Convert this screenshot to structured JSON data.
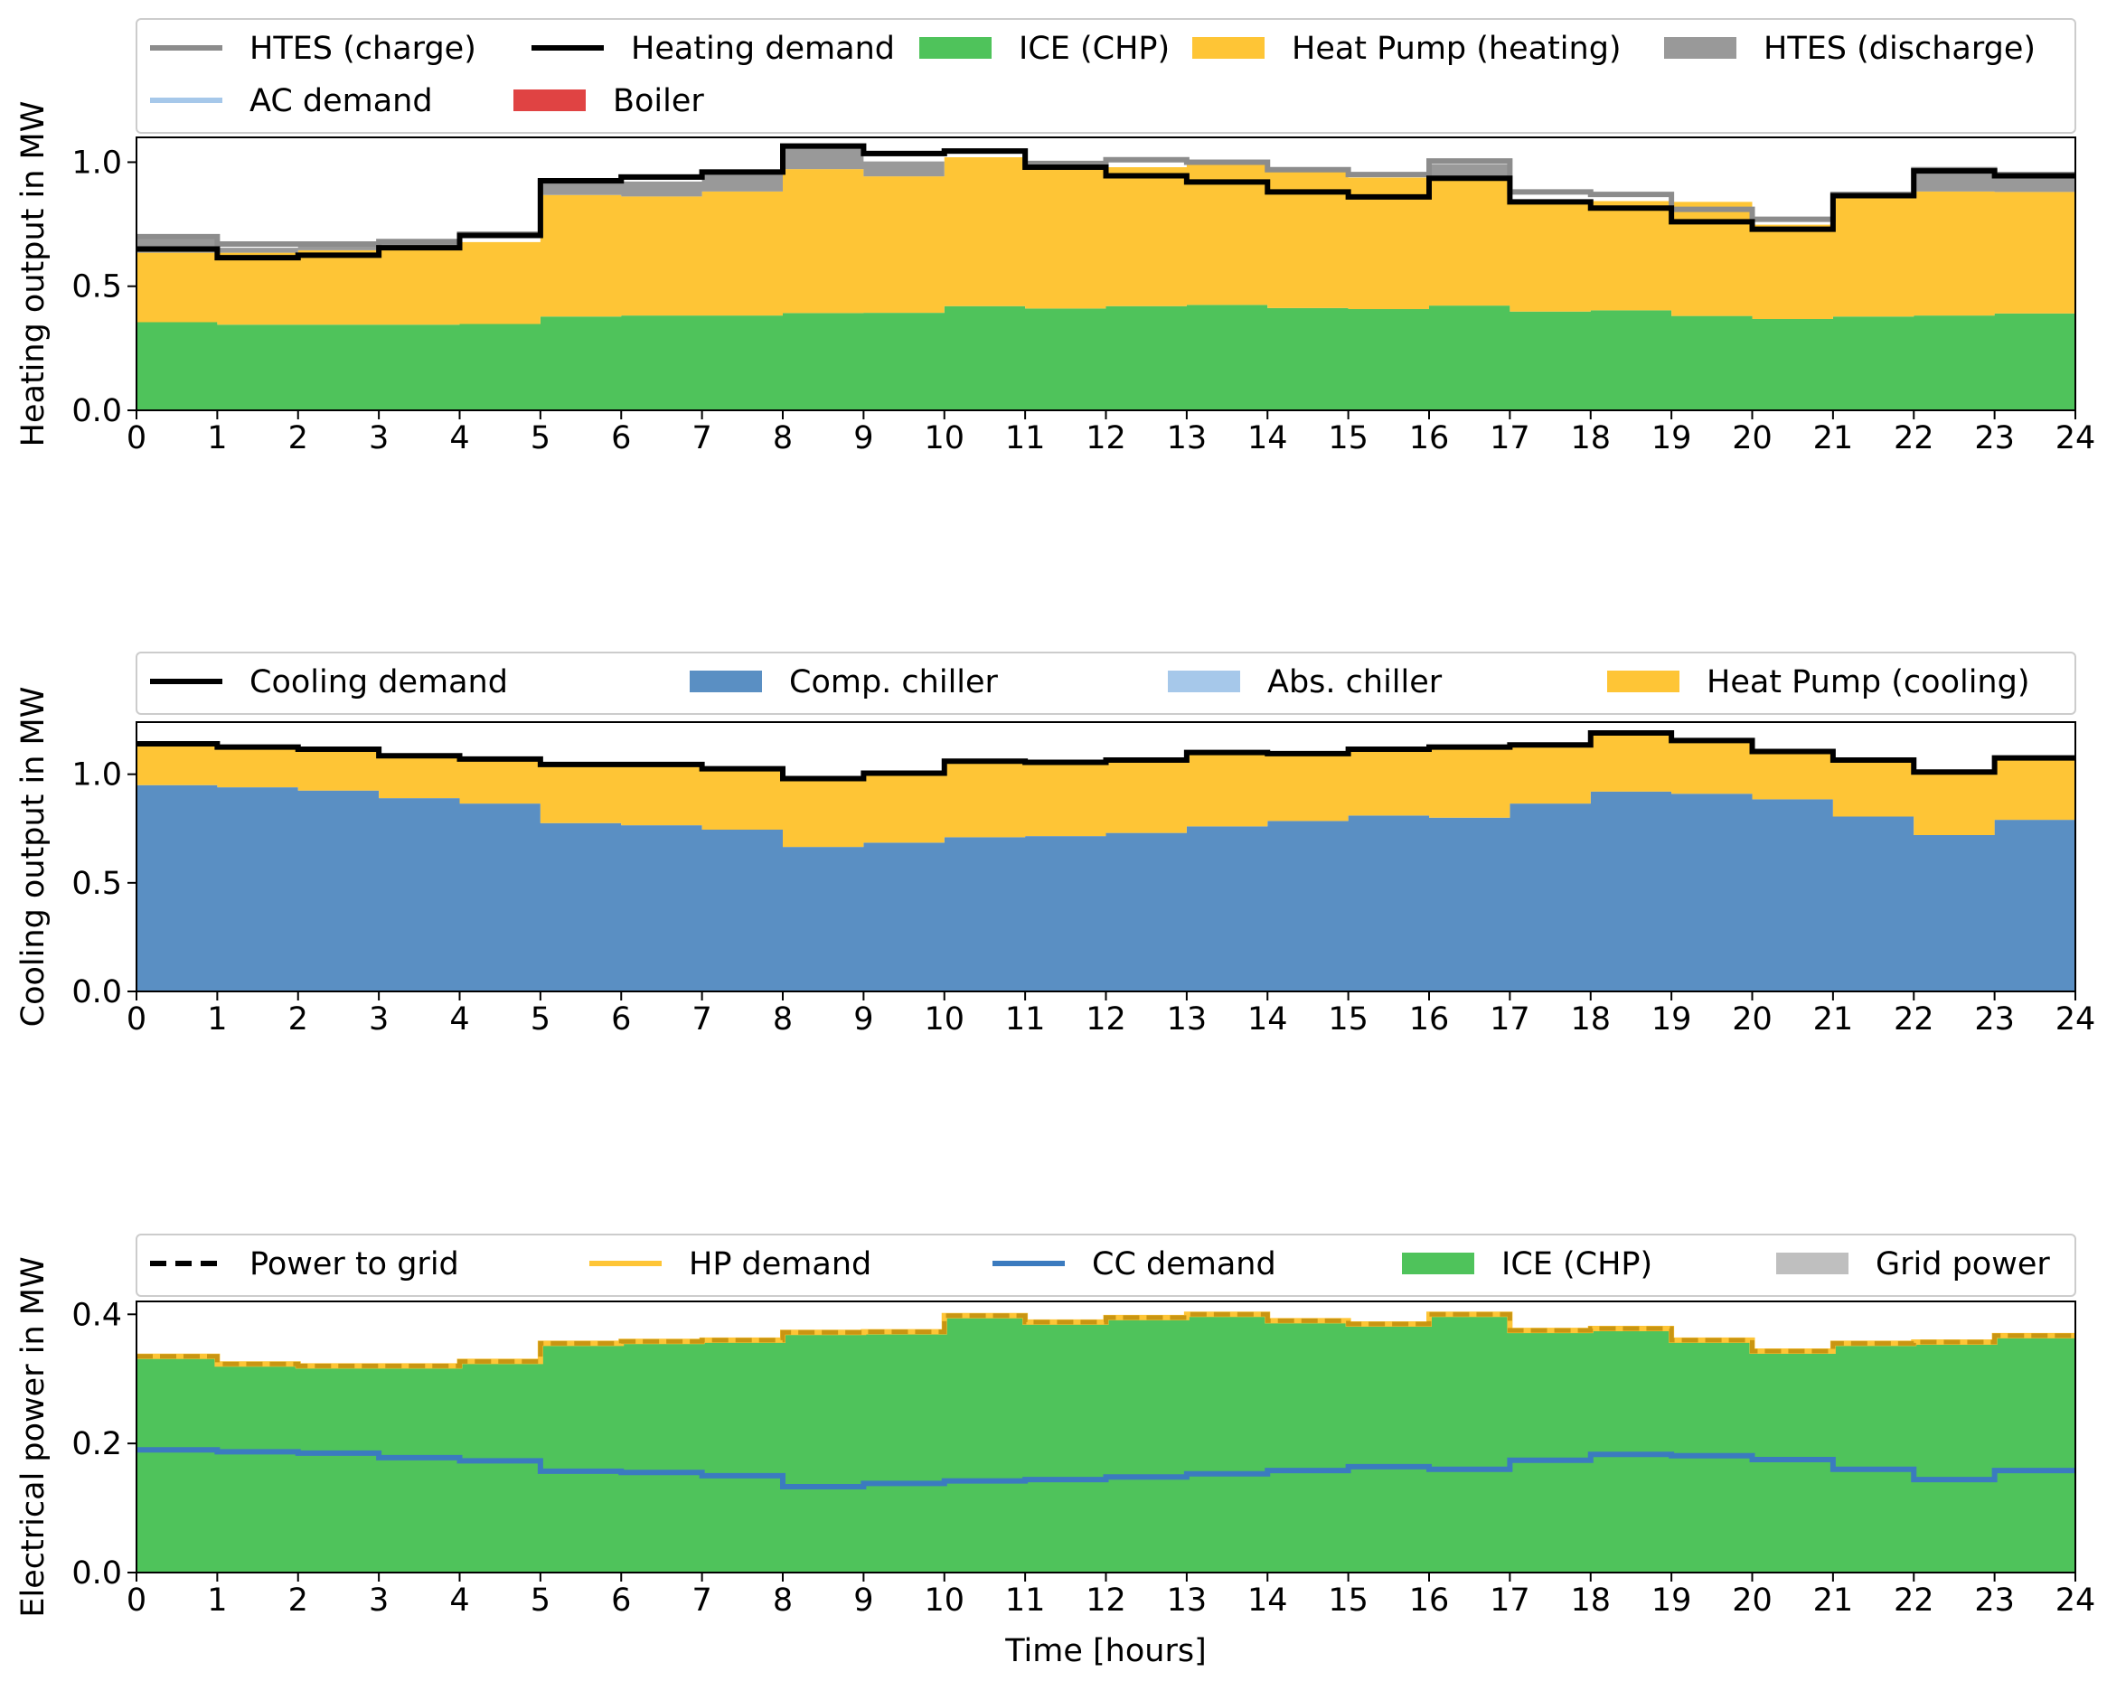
{
  "x_ticks": [
    "0",
    "1",
    "2",
    "3",
    "4",
    "5",
    "6",
    "7",
    "8",
    "9",
    "10",
    "11",
    "12",
    "13",
    "14",
    "15",
    "16",
    "17",
    "18",
    "19",
    "20",
    "21",
    "22",
    "23",
    "24"
  ],
  "chart_data": [
    {
      "type": "area",
      "id": "heating",
      "ylabel": "Heating output in MW",
      "xlim": [
        0,
        24
      ],
      "ylim": [
        0,
        1.1
      ],
      "yticks": [
        "0.0",
        "0.5",
        "1.0"
      ],
      "ytick_values": [
        0,
        0.5,
        1.0
      ],
      "step": true,
      "stack": [
        {
          "name": "ICE (CHP)",
          "color": "#4fc35b",
          "values": [
            0.355,
            0.345,
            0.345,
            0.345,
            0.348,
            0.378,
            0.382,
            0.382,
            0.392,
            0.393,
            0.42,
            0.41,
            0.42,
            0.425,
            0.412,
            0.408,
            0.422,
            0.398,
            0.403,
            0.38,
            0.368,
            0.378,
            0.382,
            0.39
          ]
        },
        {
          "name": "Heat Pump (heating)",
          "color": "#fec536",
          "values": [
            0.28,
            0.29,
            0.3,
            0.32,
            0.33,
            0.49,
            0.48,
            0.5,
            0.58,
            0.55,
            0.6,
            0.57,
            0.56,
            0.57,
            0.55,
            0.53,
            0.52,
            0.44,
            0.44,
            0.46,
            0.38,
            0.48,
            0.5,
            0.49
          ]
        },
        {
          "name": "HTES (discharge)",
          "color": "#999999",
          "values": [
            0.055,
            0.02,
            0.018,
            0.005,
            0,
            0.05,
            0.06,
            0.08,
            0.09,
            0.06,
            0,
            0,
            0,
            0,
            0,
            0,
            0.05,
            0,
            0,
            0,
            0,
            0,
            0.08,
            0.06
          ]
        },
        {
          "name": "Boiler",
          "color": "#e04343",
          "values": [
            0,
            0,
            0,
            0,
            0,
            0,
            0,
            0,
            0,
            0,
            0,
            0,
            0,
            0,
            0,
            0,
            0,
            0,
            0,
            0,
            0,
            0,
            0,
            0
          ]
        }
      ],
      "lines": [
        {
          "name": "HTES (charge)",
          "color": "#8c8c8c",
          "values": [
            0.7,
            0.67,
            0.67,
            0.68,
            0.71,
            0.92,
            0.94,
            0.96,
            1.065,
            1.035,
            1.045,
            0.995,
            1.01,
            1.0,
            0.97,
            0.95,
            1.005,
            0.88,
            0.87,
            0.81,
            0.77,
            0.87,
            0.97,
            0.95
          ]
        },
        {
          "name": "Heating demand",
          "color": "#000000",
          "values": [
            0.65,
            0.615,
            0.625,
            0.655,
            0.705,
            0.925,
            0.94,
            0.96,
            1.065,
            1.035,
            1.045,
            0.98,
            0.945,
            0.92,
            0.88,
            0.86,
            0.935,
            0.84,
            0.815,
            0.76,
            0.73,
            0.865,
            0.965,
            0.945
          ]
        }
      ],
      "legend": [
        {
          "label": "HTES (charge)",
          "kind": "line",
          "color": "#8c8c8c"
        },
        {
          "label": "Heating demand",
          "kind": "line",
          "color": "#000000"
        },
        {
          "label": "ICE (CHP)",
          "kind": "patch",
          "color": "#4fc35b"
        },
        {
          "label": "Heat Pump (heating)",
          "kind": "patch",
          "color": "#fec536"
        },
        {
          "label": "HTES (discharge)",
          "kind": "patch",
          "color": "#999999"
        },
        {
          "label": "AC demand",
          "kind": "line",
          "color": "#a6c8ea"
        },
        {
          "label": "Boiler",
          "kind": "patch",
          "color": "#e04343"
        }
      ]
    },
    {
      "type": "area",
      "id": "cooling",
      "ylabel": "Cooling output in MW",
      "xlim": [
        0,
        24
      ],
      "ylim": [
        0,
        1.24
      ],
      "yticks": [
        "0.0",
        "0.5",
        "1.0"
      ],
      "ytick_values": [
        0,
        0.5,
        1.0
      ],
      "step": true,
      "stack": [
        {
          "name": "Comp. chiller",
          "color": "#5a8fc3",
          "values": [
            0.95,
            0.94,
            0.925,
            0.89,
            0.865,
            0.775,
            0.765,
            0.745,
            0.665,
            0.685,
            0.71,
            0.715,
            0.73,
            0.76,
            0.785,
            0.81,
            0.8,
            0.865,
            0.92,
            0.91,
            0.885,
            0.805,
            0.72,
            0.79
          ]
        },
        {
          "name": "Abs. chiller",
          "color": "#a6c8ea",
          "values": [
            0,
            0,
            0,
            0,
            0,
            0,
            0,
            0,
            0,
            0,
            0,
            0,
            0,
            0,
            0,
            0,
            0,
            0,
            0,
            0,
            0,
            0,
            0,
            0
          ]
        },
        {
          "name": "Heat Pump (cooling)",
          "color": "#fec536",
          "values": [
            0.19,
            0.185,
            0.19,
            0.195,
            0.205,
            0.27,
            0.28,
            0.28,
            0.315,
            0.32,
            0.35,
            0.34,
            0.335,
            0.34,
            0.31,
            0.305,
            0.325,
            0.27,
            0.27,
            0.245,
            0.22,
            0.26,
            0.29,
            0.285
          ]
        }
      ],
      "lines": [
        {
          "name": "Cooling demand",
          "color": "#000000",
          "values": [
            1.14,
            1.125,
            1.115,
            1.085,
            1.07,
            1.045,
            1.045,
            1.025,
            0.98,
            1.005,
            1.06,
            1.055,
            1.065,
            1.1,
            1.095,
            1.115,
            1.125,
            1.135,
            1.19,
            1.155,
            1.105,
            1.065,
            1.01,
            1.075
          ]
        }
      ],
      "legend": [
        {
          "label": "Cooling demand",
          "kind": "line",
          "color": "#000000"
        },
        {
          "label": "Comp. chiller",
          "kind": "patch",
          "color": "#5a8fc3"
        },
        {
          "label": "Abs. chiller",
          "kind": "patch",
          "color": "#a6c8ea"
        },
        {
          "label": "Heat Pump (cooling)",
          "kind": "patch",
          "color": "#fec536"
        }
      ]
    },
    {
      "type": "area",
      "id": "electrical",
      "ylabel": "Electrical power in MW",
      "xlabel": "Time [hours]",
      "xlim": [
        0,
        24
      ],
      "ylim": [
        0,
        0.42
      ],
      "yticks": [
        "0.0",
        "0.2",
        "0.4"
      ],
      "ytick_values": [
        0,
        0.2,
        0.4
      ],
      "step": true,
      "stack": [
        {
          "name": "ICE (CHP)",
          "color": "#4fc35b",
          "values": [
            0.335,
            0.323,
            0.32,
            0.32,
            0.327,
            0.355,
            0.358,
            0.36,
            0.372,
            0.373,
            0.398,
            0.388,
            0.395,
            0.4,
            0.39,
            0.385,
            0.4,
            0.375,
            0.378,
            0.36,
            0.343,
            0.355,
            0.357,
            0.367
          ]
        },
        {
          "name": "Grid power",
          "color": "#bfbfbf",
          "values": [
            0,
            0,
            0,
            0,
            0,
            0,
            0,
            0,
            0,
            0,
            0,
            0,
            0,
            0,
            0,
            0,
            0,
            0,
            0,
            0,
            0,
            0,
            0,
            0
          ]
        }
      ],
      "lines": [
        {
          "name": "HP demand",
          "color": "#fec536",
          "values": [
            0.335,
            0.323,
            0.32,
            0.32,
            0.327,
            0.355,
            0.358,
            0.36,
            0.372,
            0.373,
            0.398,
            0.388,
            0.395,
            0.4,
            0.39,
            0.385,
            0.4,
            0.375,
            0.378,
            0.36,
            0.343,
            0.355,
            0.357,
            0.367
          ]
        },
        {
          "name": "Power to grid",
          "color": "#c99512",
          "dashed": true,
          "values": [
            0.335,
            0.323,
            0.32,
            0.32,
            0.327,
            0.355,
            0.358,
            0.36,
            0.372,
            0.373,
            0.398,
            0.388,
            0.395,
            0.4,
            0.39,
            0.385,
            0.4,
            0.375,
            0.378,
            0.36,
            0.343,
            0.355,
            0.357,
            0.367
          ]
        },
        {
          "name": "CC demand",
          "color": "#3b7bbf",
          "values": [
            0.19,
            0.187,
            0.185,
            0.178,
            0.173,
            0.157,
            0.155,
            0.15,
            0.133,
            0.138,
            0.142,
            0.144,
            0.148,
            0.153,
            0.158,
            0.164,
            0.16,
            0.174,
            0.183,
            0.181,
            0.175,
            0.16,
            0.144,
            0.158
          ]
        }
      ],
      "legend": [
        {
          "label": "Power to grid",
          "kind": "dash",
          "color": "#000000"
        },
        {
          "label": "HP demand",
          "kind": "line",
          "color": "#fec536"
        },
        {
          "label": "CC demand",
          "kind": "line",
          "color": "#3b7bbf"
        },
        {
          "label": "ICE (CHP)",
          "kind": "patch",
          "color": "#4fc35b"
        },
        {
          "label": "Grid power",
          "kind": "patch",
          "color": "#bfbfbf"
        }
      ]
    }
  ]
}
